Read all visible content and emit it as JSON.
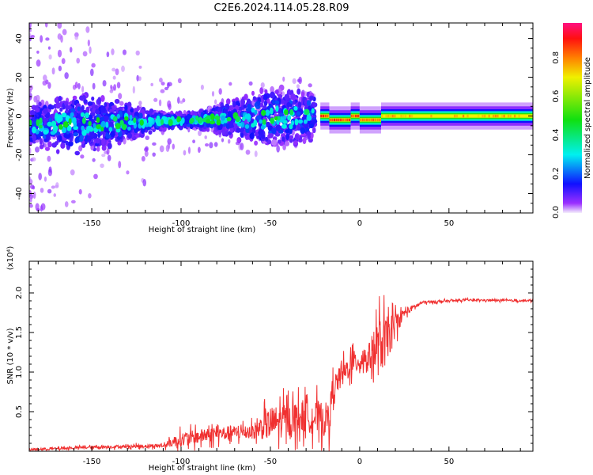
{
  "title": "C2E6.2024.114.05.28.R09",
  "chart_data": [
    {
      "type": "heatmap",
      "title": "C2E6.2024.114.05.28.R09",
      "xlabel": "Height of straight line (km)",
      "ylabel": "Frequency (Hz)",
      "xlim": [
        -185,
        97
      ],
      "ylim": [
        -50,
        48
      ],
      "xticks": [
        -150,
        -100,
        -50,
        0,
        50
      ],
      "yticks": [
        -40,
        -20,
        0,
        20,
        40
      ],
      "xtick_labels": [
        "-150",
        "-100",
        "-50",
        "0",
        "50"
      ],
      "ytick_labels": [
        "-40",
        "-20",
        "0",
        "20",
        "40"
      ],
      "colorbar": {
        "label": "Normalized spectral amplitude",
        "range": [
          0,
          0.98
        ],
        "ticks": [
          "0.0",
          "0.2",
          "0.4",
          "0.6",
          "0.8"
        ],
        "tick_values": [
          0,
          0.2,
          0.4,
          0.6,
          0.8
        ],
        "stops": [
          {
            "v": 0.0,
            "c": "#f4eefc"
          },
          {
            "v": 0.05,
            "c": "#9b30ff"
          },
          {
            "v": 0.15,
            "c": "#1010ff"
          },
          {
            "v": 0.3,
            "c": "#00f0f0"
          },
          {
            "v": 0.48,
            "c": "#10e010"
          },
          {
            "v": 0.7,
            "c": "#f0f000"
          },
          {
            "v": 0.8,
            "c": "#ff8000"
          },
          {
            "v": 0.9,
            "c": "#ff1010"
          },
          {
            "v": 0.98,
            "c": "#ff1080"
          }
        ]
      },
      "scatter_region": {
        "x_range": [
          -185,
          -25
        ],
        "center_freq_start": -5,
        "center_freq_end": 0,
        "core_halfwidth_hz": 9
      },
      "steady_band": [
        {
          "x0": -22,
          "x1": -17,
          "freq": 0,
          "peak": 0.9
        },
        {
          "x0": -17,
          "x1": -5,
          "freq": -2,
          "peak": 0.9
        },
        {
          "x0": -5,
          "x1": 0,
          "freq": 0,
          "peak": 0.9
        },
        {
          "x0": 0,
          "x1": 12,
          "freq": -2,
          "peak": 0.85
        },
        {
          "x0": 12,
          "x1": 97,
          "freq": 0,
          "peak": 0.8
        }
      ]
    },
    {
      "type": "line",
      "xlabel": "Height of straight line (km)",
      "ylabel": "SNR (10 * v/v)",
      "y_multiplier": "(x10⁴)",
      "xlim": [
        -185,
        97
      ],
      "ylim": [
        0,
        2.4
      ],
      "xticks": [
        -150,
        -100,
        -50,
        0,
        50
      ],
      "yticks": [
        0.5,
        1.0,
        1.5,
        2.0
      ],
      "xtick_labels": [
        "-150",
        "-100",
        "-50",
        "0",
        "50"
      ],
      "ytick_labels": [
        "0.5",
        "1.0",
        "1.5",
        "2.0"
      ],
      "color": "#f03030",
      "series": [
        {
          "name": "SNR",
          "x": [
            -185,
            -150,
            -110,
            -100,
            -80,
            -60,
            -50,
            -30,
            -17,
            -15,
            -5,
            5,
            10,
            15,
            20,
            25,
            35,
            60,
            97
          ],
          "y_mean": [
            0.02,
            0.05,
            0.07,
            0.15,
            0.22,
            0.25,
            0.35,
            0.45,
            0.4,
            0.8,
            1.1,
            1.2,
            1.3,
            1.4,
            1.6,
            1.75,
            1.88,
            1.91,
            1.9
          ],
          "noise": [
            0.02,
            0.03,
            0.04,
            0.15,
            0.15,
            0.15,
            0.35,
            0.35,
            0.35,
            0.25,
            0.25,
            0.25,
            0.6,
            0.5,
            0.25,
            0.08,
            0.03,
            0.02,
            0.02
          ]
        }
      ]
    }
  ]
}
